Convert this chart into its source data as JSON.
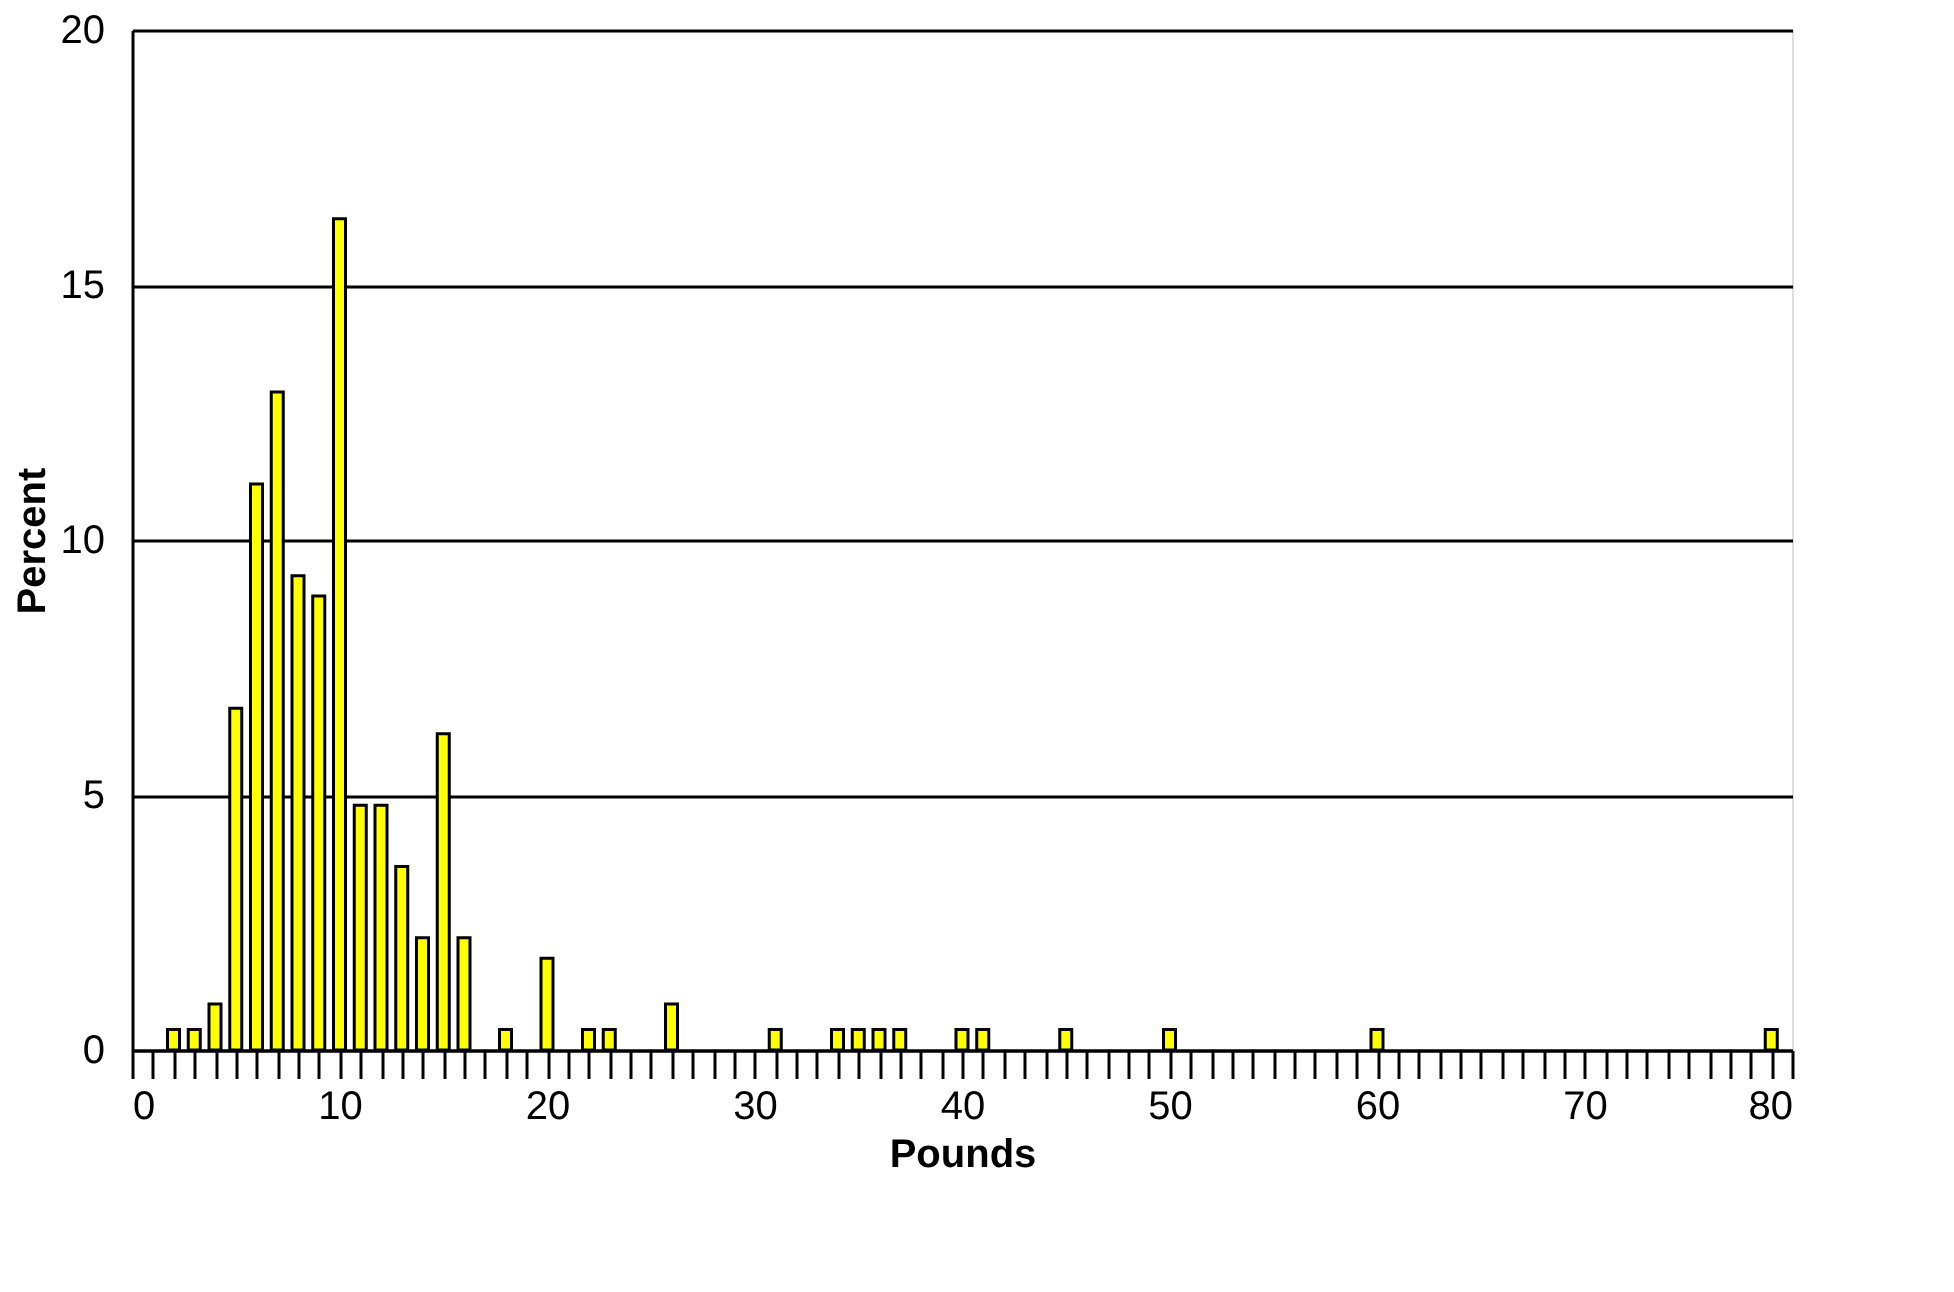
{
  "chart_data": {
    "type": "bar",
    "xlabel": "Pounds",
    "ylabel": "Percent",
    "x": [
      2,
      3,
      4,
      5,
      6,
      7,
      8,
      9,
      10,
      11,
      12,
      13,
      14,
      15,
      16,
      18,
      20,
      22,
      23,
      26,
      31,
      34,
      35,
      36,
      37,
      40,
      41,
      45,
      50,
      60,
      79
    ],
    "values": [
      0.4,
      0.4,
      0.9,
      6.7,
      11.1,
      12.9,
      9.3,
      8.9,
      16.3,
      4.8,
      4.8,
      3.6,
      2.2,
      6.2,
      2.2,
      0.4,
      1.8,
      0.4,
      0.4,
      0.9,
      0.4,
      0.4,
      0.4,
      0.4,
      0.4,
      0.4,
      0.4,
      0.4,
      0.4,
      0.4,
      0.4
    ],
    "color": "#ffff00",
    "xlim": [
      0,
      80
    ],
    "xticks": [
      0,
      {
        "value": 1,
        "label": null
      },
      {
        "value": 2,
        "label": null
      },
      {
        "value": 3,
        "label": null
      },
      {
        "value": 4,
        "label": null
      },
      {
        "value": 5,
        "label": null
      },
      {
        "value": 6,
        "label": null
      },
      {
        "value": 7,
        "label": null
      },
      {
        "value": 8,
        "label": null
      },
      {
        "value": 9,
        "label": null
      },
      10,
      {
        "value": 11,
        "label": null
      },
      {
        "value": 12,
        "label": null
      },
      {
        "value": 13,
        "label": null
      },
      {
        "value": 14,
        "label": null
      },
      {
        "value": 15,
        "label": null
      },
      {
        "value": 16,
        "label": null
      },
      {
        "value": 17,
        "label": null
      },
      {
        "value": 18,
        "label": null
      },
      {
        "value": 19,
        "label": null
      },
      20,
      {
        "value": 21,
        "label": null
      },
      {
        "value": 22,
        "label": null
      },
      {
        "value": 23,
        "label": null
      },
      {
        "value": 24,
        "label": null
      },
      {
        "value": 25,
        "label": null
      },
      {
        "value": 26,
        "label": null
      },
      {
        "value": 27,
        "label": null
      },
      {
        "value": 28,
        "label": null
      },
      {
        "value": 29,
        "label": null
      },
      30,
      {
        "value": 31,
        "label": null
      },
      {
        "value": 32,
        "label": null
      },
      {
        "value": 33,
        "label": null
      },
      {
        "value": 34,
        "label": null
      },
      {
        "value": 35,
        "label": null
      },
      {
        "value": 36,
        "label": null
      },
      {
        "value": 37,
        "label": null
      },
      {
        "value": 38,
        "label": null
      },
      {
        "value": 39,
        "label": null
      },
      40,
      {
        "value": 41,
        "label": null
      },
      {
        "value": 42,
        "label": null
      },
      {
        "value": 43,
        "label": null
      },
      {
        "value": 44,
        "label": null
      },
      {
        "value": 45,
        "label": null
      },
      {
        "value": 46,
        "label": null
      },
      {
        "value": 47,
        "label": null
      },
      {
        "value": 48,
        "label": null
      },
      {
        "value": 49,
        "label": null
      },
      50,
      {
        "value": 51,
        "label": null
      },
      {
        "value": 52,
        "label": null
      },
      {
        "value": 53,
        "label": null
      },
      {
        "value": 54,
        "label": null
      },
      {
        "value": 55,
        "label": null
      },
      {
        "value": 56,
        "label": null
      },
      {
        "value": 57,
        "label": null
      },
      {
        "value": 58,
        "label": null
      },
      {
        "value": 59,
        "label": null
      },
      60,
      {
        "value": 61,
        "label": null
      },
      {
        "value": 62,
        "label": null
      },
      {
        "value": 63,
        "label": null
      },
      {
        "value": 64,
        "label": null
      },
      {
        "value": 65,
        "label": null
      },
      {
        "value": 66,
        "label": null
      },
      {
        "value": 67,
        "label": null
      },
      {
        "value": 68,
        "label": null
      },
      {
        "value": 69,
        "label": null
      },
      70,
      {
        "value": 71,
        "label": null
      },
      {
        "value": 72,
        "label": null
      },
      {
        "value": 73,
        "label": null
      },
      {
        "value": 74,
        "label": null
      },
      {
        "value": 75,
        "label": null
      },
      {
        "value": 76,
        "label": null
      },
      {
        "value": 77,
        "label": null
      },
      {
        "value": 78,
        "label": null
      },
      {
        "value": 79,
        "label": null
      },
      80
    ],
    "ylim": [
      0,
      20
    ],
    "yticks": [
      0,
      5,
      10,
      15,
      20
    ],
    "grid": "y"
  }
}
